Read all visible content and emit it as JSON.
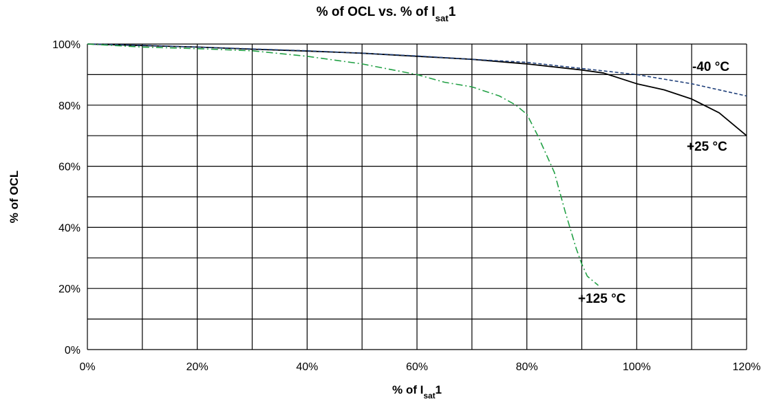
{
  "chart_data": {
    "type": "line",
    "title": {
      "prefix": "% of OCL  vs.  % of I",
      "subscript": "sat",
      "suffix": "1"
    },
    "xlabel": {
      "prefix": "% of I",
      "subscript": "sat",
      "suffix": "1"
    },
    "ylabel": "% of OCL",
    "xlim": [
      0,
      120
    ],
    "ylim": [
      0,
      100
    ],
    "x_ticks": [
      0,
      20,
      40,
      60,
      80,
      100,
      120
    ],
    "x_tick_labels": [
      "0%",
      "20%",
      "40%",
      "60%",
      "80%",
      "100%",
      "120%"
    ],
    "y_ticks": [
      0,
      20,
      40,
      60,
      80,
      100
    ],
    "y_tick_labels": [
      "0%",
      "20%",
      "40%",
      "60%",
      "80%",
      "100%"
    ],
    "x_grid": [
      0,
      10,
      20,
      30,
      40,
      50,
      60,
      70,
      80,
      90,
      100,
      110,
      120
    ],
    "y_grid": [
      0,
      10,
      20,
      30,
      40,
      50,
      60,
      70,
      80,
      90,
      100
    ],
    "grid": true,
    "series": [
      {
        "name": "+25 °C",
        "color": "#000000",
        "dash": "solid",
        "x": [
          0,
          10,
          20,
          30,
          40,
          50,
          60,
          70,
          80,
          90,
          94,
          100,
          105,
          110,
          115,
          120
        ],
        "y": [
          100,
          99.5,
          99,
          98.3,
          97.7,
          97,
          96,
          95,
          93.5,
          91.5,
          90.5,
          87,
          85,
          82,
          77.5,
          70
        ]
      },
      {
        "name": "-40 °C",
        "color": "#1f3f7a",
        "dash": "dashed",
        "x": [
          0,
          10,
          20,
          30,
          40,
          50,
          60,
          70,
          80,
          90,
          100,
          110,
          120
        ],
        "y": [
          100,
          99.6,
          99,
          98.4,
          97.8,
          97,
          96.1,
          95,
          94,
          92,
          90,
          87,
          83
        ]
      },
      {
        "name": "+125 °C",
        "color": "#22a045",
        "dash": "dashdot",
        "x": [
          0,
          10,
          20,
          30,
          40,
          50,
          60,
          65,
          70,
          75,
          78,
          80,
          82,
          85,
          87,
          89,
          90,
          91,
          93
        ],
        "y": [
          100,
          99,
          98.5,
          97.8,
          96,
          93.5,
          90,
          87.5,
          86,
          83,
          80,
          77,
          70,
          58,
          45,
          33,
          28,
          24,
          21
        ]
      }
    ]
  }
}
